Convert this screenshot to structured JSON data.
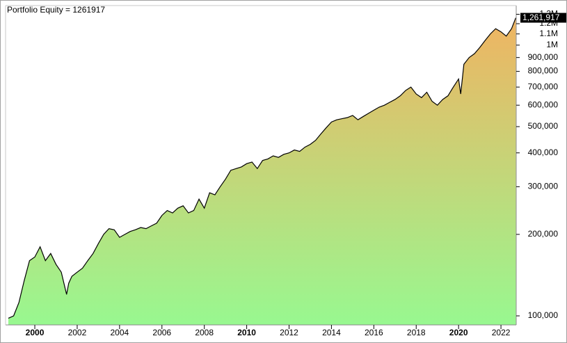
{
  "chart_data": {
    "type": "area",
    "title": "Portfolio Equity = 1261917",
    "x": [
      1998.75,
      1999.0,
      1999.25,
      1999.5,
      1999.75,
      2000.0,
      2000.25,
      2000.5,
      2000.75,
      2001.0,
      2001.25,
      2001.5,
      2001.6,
      2001.75,
      2002.0,
      2002.25,
      2002.5,
      2002.75,
      2003.0,
      2003.25,
      2003.5,
      2003.75,
      2004.0,
      2004.25,
      2004.5,
      2004.75,
      2005.0,
      2005.25,
      2005.5,
      2005.75,
      2006.0,
      2006.25,
      2006.5,
      2006.75,
      2007.0,
      2007.25,
      2007.5,
      2007.75,
      2008.0,
      2008.25,
      2008.5,
      2008.75,
      2009.0,
      2009.25,
      2009.5,
      2009.75,
      2010.0,
      2010.25,
      2010.5,
      2010.75,
      2011.0,
      2011.25,
      2011.5,
      2011.75,
      2012.0,
      2012.25,
      2012.5,
      2012.75,
      2013.0,
      2013.25,
      2013.5,
      2013.75,
      2014.0,
      2014.25,
      2014.5,
      2014.75,
      2015.0,
      2015.25,
      2015.5,
      2015.75,
      2016.0,
      2016.25,
      2016.5,
      2016.75,
      2017.0,
      2017.25,
      2017.5,
      2017.75,
      2018.0,
      2018.25,
      2018.5,
      2018.75,
      2019.0,
      2019.25,
      2019.5,
      2019.75,
      2020.0,
      2020.1,
      2020.25,
      2020.5,
      2020.75,
      2021.0,
      2021.25,
      2021.5,
      2021.75,
      2022.0,
      2022.25,
      2022.5,
      2022.7
    ],
    "values": [
      98000,
      100000,
      112000,
      135000,
      160000,
      165000,
      180000,
      160000,
      170000,
      155000,
      145000,
      120000,
      132000,
      140000,
      145000,
      150000,
      160000,
      170000,
      185000,
      200000,
      210000,
      208000,
      195000,
      200000,
      205000,
      208000,
      212000,
      210000,
      215000,
      220000,
      235000,
      245000,
      240000,
      250000,
      255000,
      240000,
      245000,
      270000,
      250000,
      285000,
      280000,
      300000,
      320000,
      345000,
      350000,
      355000,
      365000,
      370000,
      350000,
      375000,
      380000,
      390000,
      385000,
      395000,
      400000,
      410000,
      405000,
      420000,
      430000,
      445000,
      470000,
      495000,
      520000,
      530000,
      535000,
      540000,
      550000,
      530000,
      545000,
      560000,
      575000,
      590000,
      600000,
      615000,
      630000,
      650000,
      680000,
      700000,
      660000,
      640000,
      670000,
      620000,
      600000,
      630000,
      650000,
      700000,
      750000,
      660000,
      850000,
      900000,
      930000,
      980000,
      1040000,
      1100000,
      1150000,
      1120000,
      1080000,
      1150000,
      1261917
    ],
    "value_labels": [
      null,
      null,
      null,
      null,
      null,
      null,
      null,
      null,
      null,
      null,
      null,
      null,
      null,
      null,
      null,
      null,
      null,
      null,
      null,
      null,
      null,
      null,
      null,
      null,
      null,
      null,
      null,
      null,
      null,
      null,
      null,
      null,
      null,
      null,
      null,
      null,
      null,
      null,
      null,
      null,
      null,
      null,
      null,
      null,
      null,
      null,
      null,
      null,
      null,
      null,
      null,
      null,
      null,
      null,
      null,
      null,
      null,
      null,
      null,
      null,
      null,
      null,
      null,
      null,
      null,
      null,
      null,
      null,
      null,
      null,
      null,
      null,
      null,
      null,
      null,
      null,
      null,
      null,
      null,
      null,
      null,
      null,
      null,
      null,
      null,
      null,
      null,
      null,
      null,
      null,
      null,
      null,
      null,
      null,
      null,
      null,
      null,
      null,
      "1,261,917"
    ],
    "xlim": [
      1998.62,
      2022.72
    ],
    "xticks": [
      2000,
      2002,
      2004,
      2006,
      2008,
      2010,
      2012,
      2014,
      2016,
      2018,
      2020,
      2022
    ],
    "major_xticks": [
      2000,
      2010,
      2020
    ],
    "ylim": [
      92600,
      1400000
    ],
    "yticks": [
      {
        "value": 100000,
        "label": "100,000"
      },
      {
        "value": 200000,
        "label": "200,000"
      },
      {
        "value": 300000,
        "label": "300,000"
      },
      {
        "value": 400000,
        "label": "400,000"
      },
      {
        "value": 500000,
        "label": "500,000"
      },
      {
        "value": 600000,
        "label": "600,000"
      },
      {
        "value": 700000,
        "label": "700,000"
      },
      {
        "value": 800000,
        "label": "800,000"
      },
      {
        "value": 900000,
        "label": "900,000"
      },
      {
        "value": 1000000,
        "label": "1M"
      },
      {
        "value": 1100000,
        "label": "1.1M"
      },
      {
        "value": 1200000,
        "label": "1.2M"
      },
      {
        "value": 1300000,
        "label": "1.3M"
      }
    ],
    "log_scale": true,
    "line_color": "#000000",
    "fill_top_color": "#f3b160",
    "fill_bottom_color": "#98f890"
  }
}
